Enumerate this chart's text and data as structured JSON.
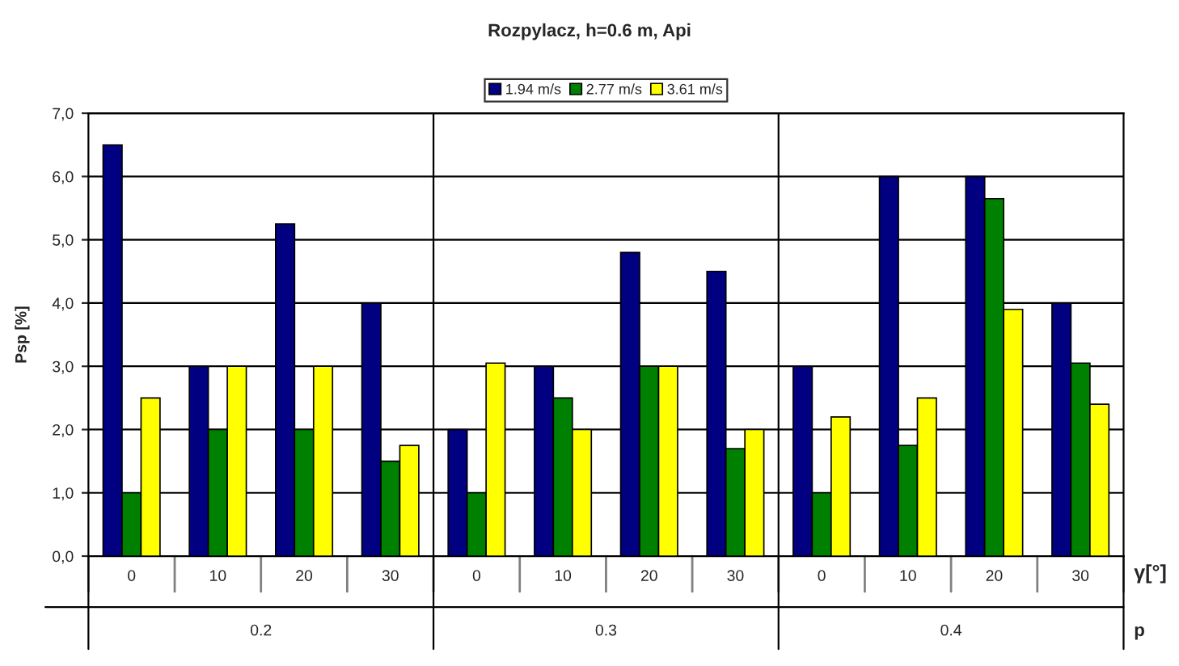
{
  "chart_data": {
    "type": "bar",
    "title": "Rozpylacz, h=0.6 m, Api",
    "ylabel": "Psp [%]",
    "xlabel": "γ[°]",
    "categories": [
      "0",
      "10",
      "20",
      "30",
      "0",
      "10",
      "20",
      "30",
      "0",
      "10",
      "20",
      "30"
    ],
    "annotations": [
      "0.2",
      "0.3",
      "0.4",
      "p"
    ],
    "series": [
      {
        "name": "1.94 m/s",
        "color": "#000080",
        "values": [
          6.5,
          3,
          5.25,
          4,
          2,
          3,
          4.8,
          4.5,
          3,
          6,
          6,
          4
        ]
      },
      {
        "name": "2.77 m/s",
        "color": "#008000",
        "values": [
          1,
          2,
          2,
          1.5,
          1,
          2.5,
          3,
          1.7,
          1,
          1.75,
          5.65,
          3.05
        ]
      },
      {
        "name": "3.61 m/s",
        "color": "#ffff00",
        "values": [
          2.5,
          3,
          3,
          1.75,
          3.05,
          2,
          3,
          2,
          2.2,
          2.5,
          3.9,
          2.4
        ]
      }
    ],
    "ylim": [
      0,
      7
    ],
    "yticks": [
      {
        "value": 0,
        "label": "0,0"
      },
      {
        "value": 1,
        "label": "1,0"
      },
      {
        "value": 2,
        "label": "2,0"
      },
      {
        "value": 3,
        "label": "3,0"
      },
      {
        "value": 4,
        "label": "4,0"
      },
      {
        "value": 5,
        "label": "5,0"
      },
      {
        "value": 6,
        "label": "6,0"
      },
      {
        "value": 7,
        "label": "7,0"
      }
    ],
    "grid": "y",
    "legend": "top"
  }
}
